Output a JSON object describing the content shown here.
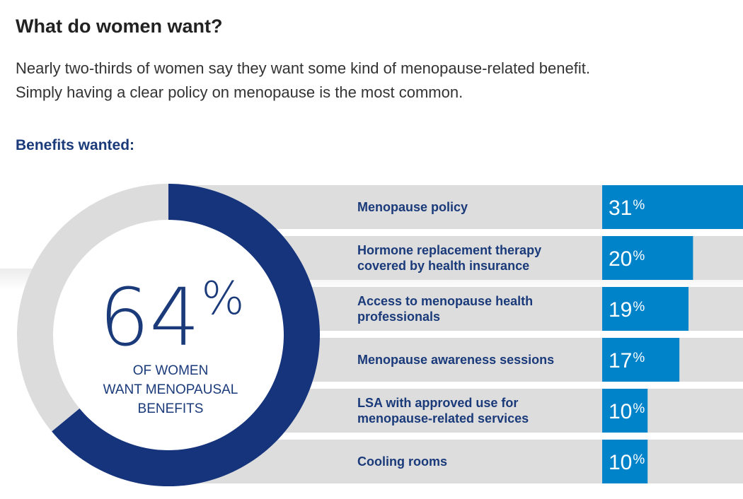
{
  "heading": "What do women want?",
  "intro": {
    "line1": "Nearly two-thirds of women say they want some kind of menopause-related benefit.",
    "line2": "Simply having a clear policy on menopause is the most common."
  },
  "subheading": "Benefits wanted:",
  "chart_data": [
    {
      "type": "pie",
      "variant": "donut",
      "values": [
        64,
        36
      ],
      "colors": [
        "#15347c",
        "#dcdcdc"
      ],
      "center_value": "64",
      "center_unit": "%",
      "center_label_lines": [
        "OF WOMEN",
        "WANT MENOPAUSAL",
        "BENEFITS"
      ]
    },
    {
      "type": "bar",
      "orientation": "horizontal",
      "unit": "%",
      "bar_color": "#0083c9",
      "row_color": "#dddddd",
      "categories": [
        [
          "Menopause policy"
        ],
        [
          "Hormone replacement therapy",
          "covered by health insurance"
        ],
        [
          "Access to menopause health",
          "professionals"
        ],
        [
          "Menopause awareness sessions"
        ],
        [
          "LSA with approved use for",
          "menopause-related services"
        ],
        [
          "Cooling rooms"
        ]
      ],
      "values": [
        31,
        20,
        19,
        17,
        10,
        10
      ]
    }
  ]
}
